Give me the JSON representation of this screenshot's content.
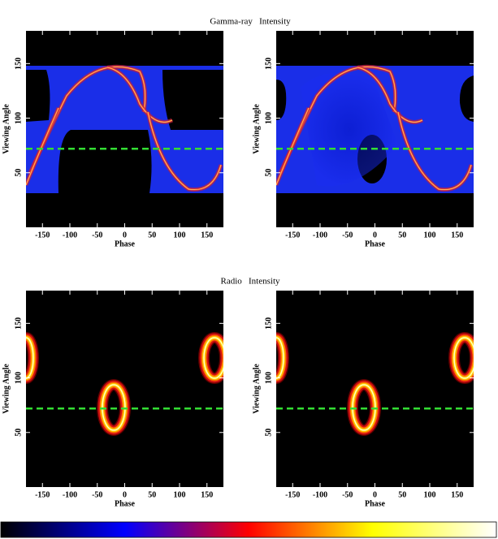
{
  "chart_data": [
    {
      "type": "heatmap",
      "kind": "gamma",
      "title": "Gamma-ray   Intensity",
      "xlabel": "Phase",
      "ylabel": "Viewing Angle",
      "xlim": [
        -180,
        180
      ],
      "ylim": [
        0,
        180
      ],
      "xticks": [
        -150,
        -100,
        -50,
        0,
        50,
        100,
        150
      ],
      "yticks": [
        50,
        100,
        150
      ],
      "hline": 72,
      "hline_color": "#33dd33"
    },
    {
      "type": "heatmap",
      "kind": "gamma",
      "xlabel": "Phase",
      "ylabel": "Viewing Angle",
      "xlim": [
        -180,
        180
      ],
      "ylim": [
        0,
        180
      ],
      "xticks": [
        -150,
        -100,
        -50,
        0,
        50,
        100,
        150
      ],
      "yticks": [
        50,
        100,
        150
      ],
      "hline": 72,
      "hline_color": "#33dd33"
    },
    {
      "type": "heatmap",
      "kind": "radio",
      "title": "Radio   Intensity",
      "xlabel": "Phase",
      "ylabel": "Viewing Angle",
      "xlim": [
        -180,
        180
      ],
      "ylim": [
        0,
        180
      ],
      "xticks": [
        -150,
        -100,
        -50,
        0,
        50,
        100,
        150
      ],
      "yticks": [
        50,
        100,
        150
      ],
      "hline": 72,
      "hline_color": "#33dd33"
    },
    {
      "type": "heatmap",
      "kind": "radio",
      "xlabel": "Phase",
      "ylabel": "Viewing Angle",
      "xlim": [
        -180,
        180
      ],
      "ylim": [
        0,
        180
      ],
      "xticks": [
        -150,
        -100,
        -50,
        0,
        50,
        100,
        150
      ],
      "yticks": [
        50,
        100,
        150
      ],
      "hline": 72,
      "hline_color": "#33dd33"
    }
  ],
  "colormap": [
    "#000000",
    "#0000ff",
    "#ff0000",
    "#ffff00",
    "#ffffff"
  ]
}
